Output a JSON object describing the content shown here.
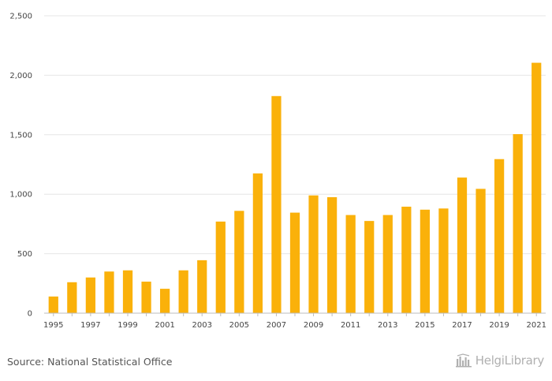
{
  "chart_data": {
    "type": "bar",
    "title": "",
    "xlabel": "",
    "ylabel": "",
    "ylim": [
      0,
      2500
    ],
    "y_ticks": [
      "0",
      "500",
      "1,000",
      "1,500",
      "2,000",
      "2,500"
    ],
    "y_tick_values": [
      0,
      500,
      1000,
      1500,
      2000,
      2500
    ],
    "categories": [
      "1995",
      "1996",
      "1997",
      "1998",
      "1999",
      "2000",
      "2001",
      "2002",
      "2003",
      "2004",
      "2005",
      "2006",
      "2007",
      "2008",
      "2009",
      "2010",
      "2011",
      "2012",
      "2013",
      "2014",
      "2015",
      "2016",
      "2017",
      "2018",
      "2019",
      "2020",
      "2021"
    ],
    "x_tick_labels": [
      "1995",
      "",
      "1997",
      "",
      "1999",
      "",
      "2001",
      "",
      "2003",
      "",
      "2005",
      "",
      "2007",
      "",
      "2009",
      "",
      "2011",
      "",
      "2013",
      "",
      "2015",
      "",
      "2017",
      "",
      "2019",
      "",
      "2021"
    ],
    "values": [
      140,
      260,
      300,
      350,
      360,
      265,
      205,
      360,
      445,
      770,
      860,
      1175,
      1825,
      845,
      990,
      975,
      825,
      775,
      825,
      895,
      870,
      880,
      1140,
      1045,
      1295,
      1505,
      2105
    ],
    "bar_color": "#FAB10A",
    "grid": true
  },
  "footer": {
    "source": "Source: National Statistical Office",
    "brand": "HelgiLibrary",
    "brand_logo": "helgi-library-logo-icon"
  },
  "colors": {
    "grid": "#e6e6e6",
    "axis": "#bdbdbd",
    "text": "#444444",
    "brand": "#b0b0b0"
  }
}
